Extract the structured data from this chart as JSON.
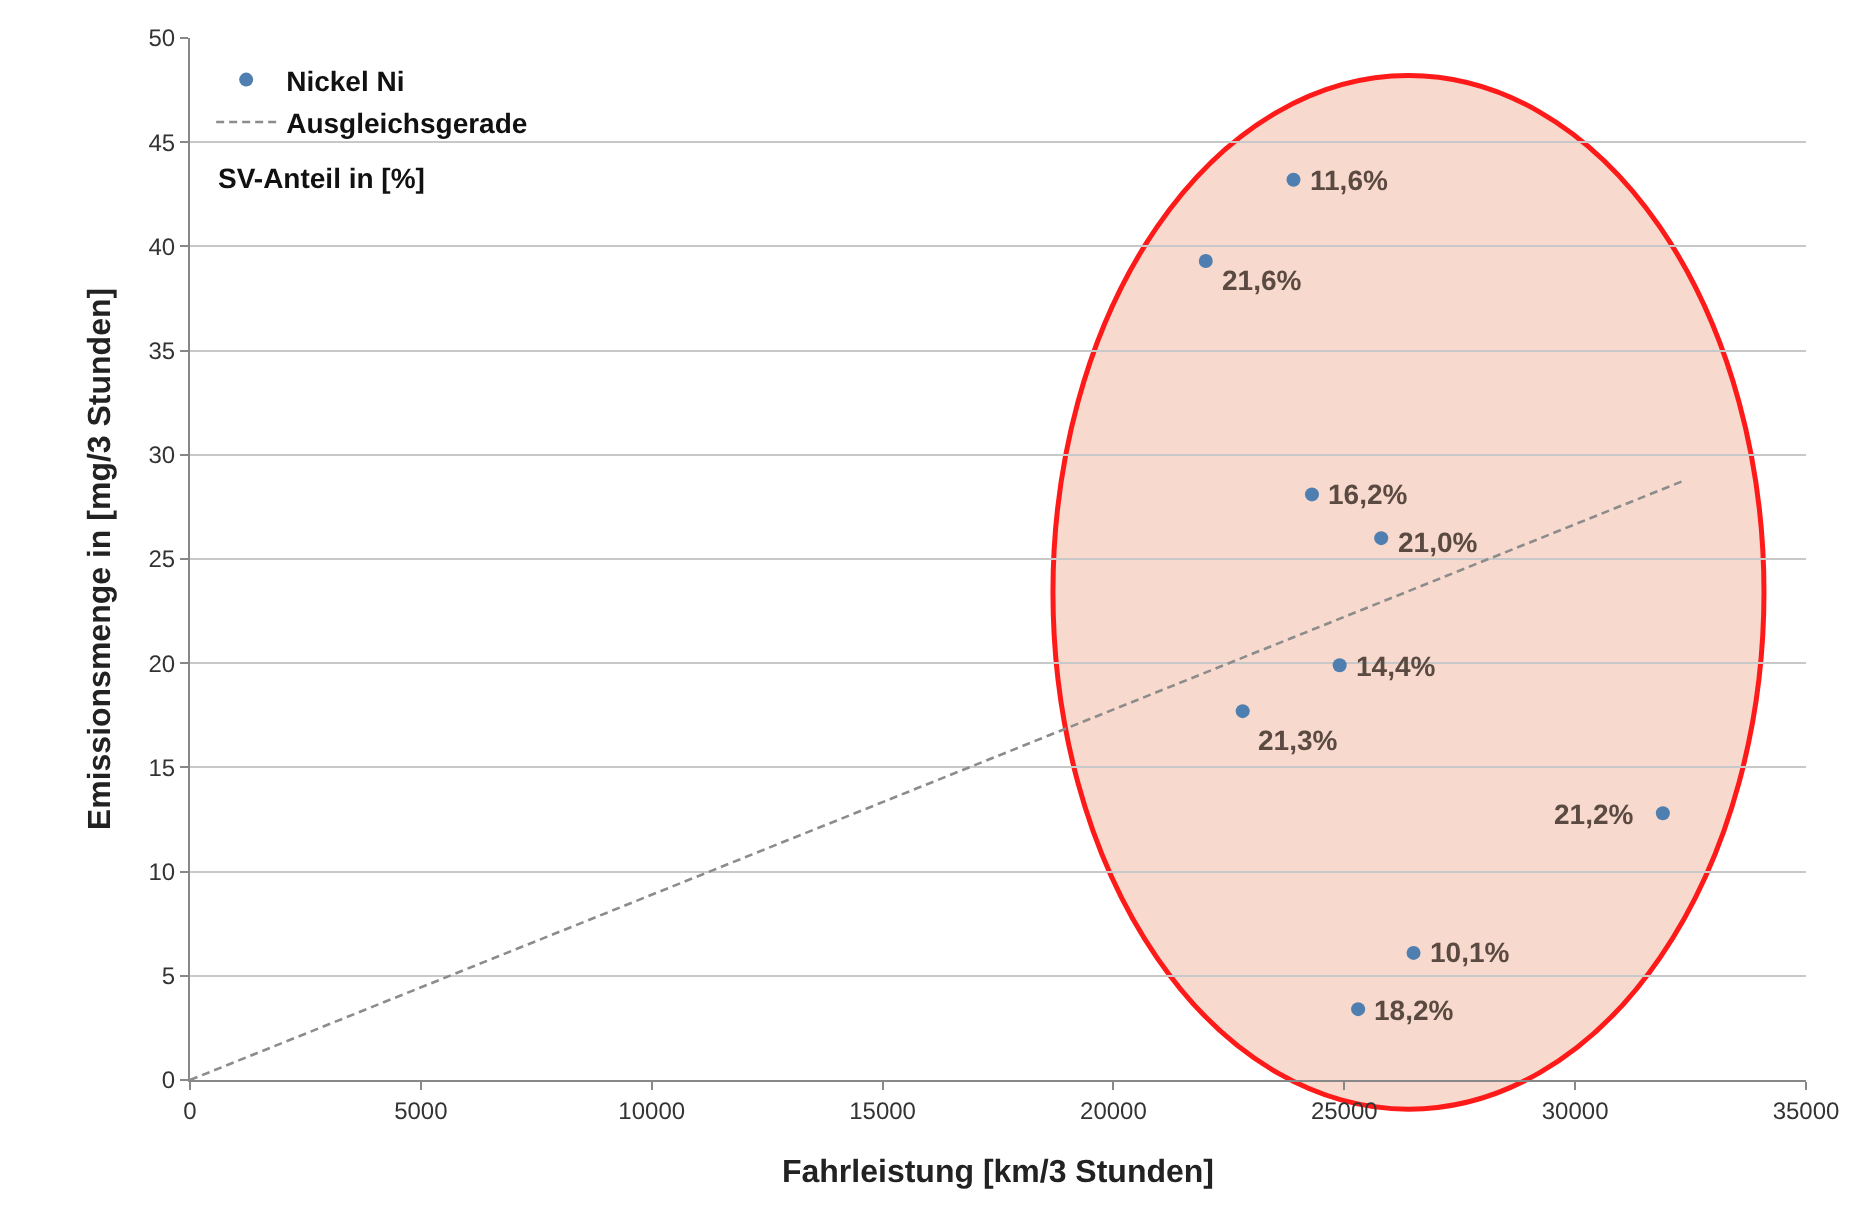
{
  "chart_data": {
    "type": "scatter",
    "xlabel": "Fahrleistung [km/3 Stunden]",
    "ylabel": "Emissionsmenge in [mg/3 Stunden]",
    "xlim": [
      0,
      35000
    ],
    "xticks": [
      0,
      5000,
      10000,
      15000,
      20000,
      25000,
      30000,
      35000
    ],
    "ylim": [
      0,
      50
    ],
    "yticks": [
      0,
      5,
      10,
      15,
      20,
      25,
      30,
      35,
      40,
      45,
      50
    ],
    "grid": "y",
    "legend": "top left",
    "marker": "circle",
    "annotations": [
      "SV-Anteil in [%]",
      {
        "text": "11,6%",
        "x": 23900,
        "y": 43.2
      },
      {
        "text": "21,6%",
        "x": 22000,
        "y": 39.3
      },
      {
        "text": "16,2%",
        "x": 24300,
        "y": 28.1
      },
      {
        "text": "21,0%",
        "x": 25800,
        "y": 26.0
      },
      {
        "text": "14,4%",
        "x": 24900,
        "y": 19.9
      },
      {
        "text": "21,3%",
        "x": 22800,
        "y": 17.7
      },
      {
        "text": "21,2%",
        "x": 31900,
        "y": 12.8
      },
      {
        "text": "10,1%",
        "x": 26500,
        "y": 6.1
      },
      {
        "text": "18,2%",
        "x": 25300,
        "y": 3.4
      }
    ],
    "series": [
      {
        "name": "Nickel Ni",
        "color": "#4f7fb0",
        "x": [
          23900,
          22000,
          24300,
          25800,
          24900,
          22800,
          31900,
          26500,
          25300
        ],
        "values": [
          43.2,
          39.3,
          28.1,
          26.0,
          19.9,
          17.7,
          12.8,
          6.1,
          3.4
        ]
      },
      {
        "name": "Ausgleichsgerade",
        "type": "line",
        "color": "#8c8c8c",
        "line_style": "dashed",
        "marker": "none",
        "x": [
          0,
          32400
        ],
        "values": [
          0,
          28.8
        ]
      }
    ]
  }
}
